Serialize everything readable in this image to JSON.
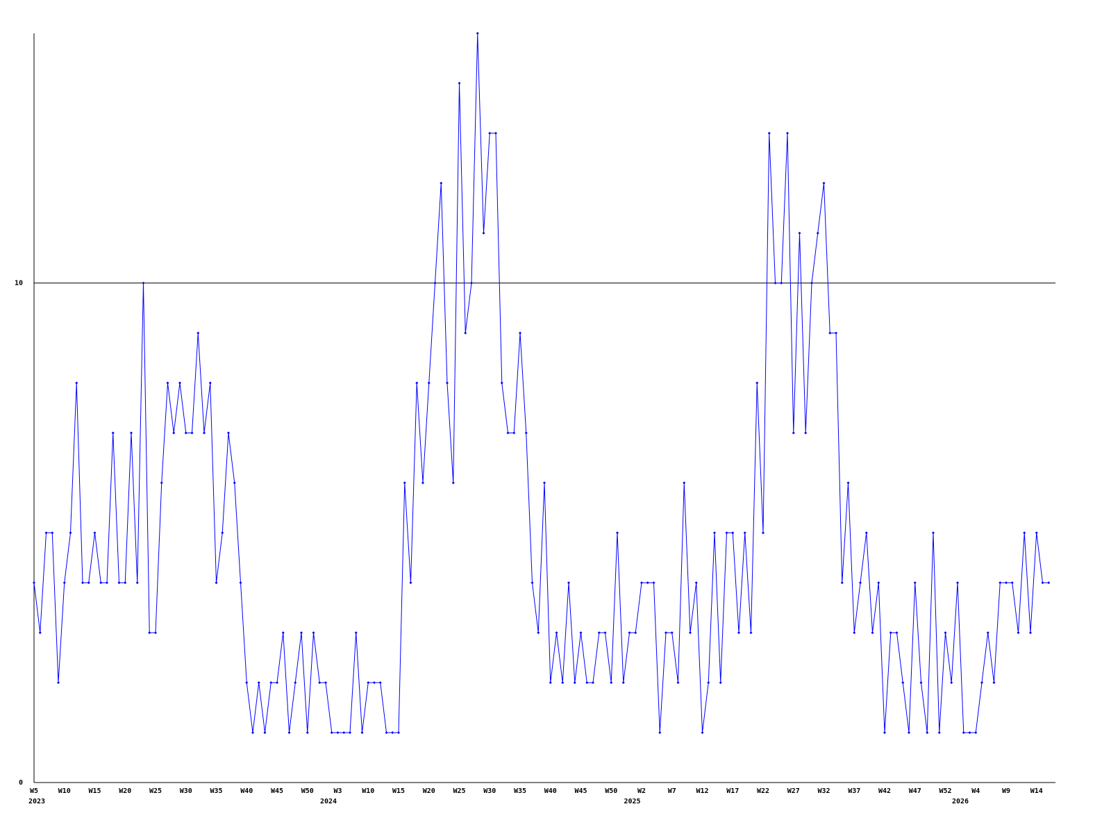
{
  "chart_data": {
    "type": "line",
    "categories": [
      "W5",
      null,
      null,
      null,
      null,
      "W10",
      null,
      null,
      null,
      null,
      "W15",
      null,
      null,
      null,
      null,
      "W20",
      null,
      null,
      null,
      null,
      "W25",
      null,
      null,
      null,
      null,
      "W30",
      null,
      null,
      null,
      null,
      "W35",
      null,
      null,
      null,
      null,
      "W40",
      null,
      null,
      null,
      null,
      "W45",
      null,
      null,
      null,
      null,
      "W50",
      null,
      null,
      null,
      null,
      "W3",
      null,
      null,
      null,
      null,
      "W10",
      null,
      null,
      null,
      null,
      "W15",
      null,
      null,
      null,
      null,
      "W20",
      null,
      null,
      null,
      null,
      "W25",
      null,
      null,
      null,
      null,
      "W30",
      null,
      null,
      null,
      null,
      "W35",
      null,
      null,
      null,
      null,
      "W40",
      null,
      null,
      null,
      null,
      "W45",
      null,
      null,
      null,
      null,
      "W50",
      null,
      null,
      null,
      null,
      "W2",
      null,
      null,
      null,
      null,
      "W7",
      null,
      null,
      null,
      null,
      "W12",
      null,
      null,
      null,
      null,
      "W17",
      null,
      null,
      null,
      null,
      "W22",
      null,
      null,
      null,
      null,
      "W27",
      null,
      null,
      null,
      null,
      "W32",
      null,
      null,
      null,
      null,
      "W37",
      null,
      null,
      null,
      null,
      "W42",
      null,
      null,
      null,
      null,
      "W47",
      null,
      null,
      null,
      null,
      "W52",
      null,
      null,
      null,
      null,
      "W4",
      null,
      null,
      null,
      null,
      "W9",
      null,
      null,
      null,
      null,
      "W14",
      null,
      null
    ],
    "year_labels": [
      "2023",
      null,
      null,
      null,
      null,
      null,
      null,
      null,
      null,
      null,
      null,
      null,
      null,
      null,
      null,
      null,
      null,
      null,
      null,
      null,
      null,
      null,
      null,
      null,
      null,
      null,
      null,
      null,
      null,
      null,
      null,
      null,
      null,
      null,
      null,
      null,
      null,
      null,
      null,
      null,
      null,
      null,
      null,
      null,
      null,
      null,
      null,
      null,
      "2024",
      null,
      null,
      null,
      null,
      null,
      null,
      null,
      null,
      null,
      null,
      null,
      null,
      null,
      null,
      null,
      null,
      null,
      null,
      null,
      null,
      null,
      null,
      null,
      null,
      null,
      null,
      null,
      null,
      null,
      null,
      null,
      null,
      null,
      null,
      null,
      null,
      null,
      null,
      null,
      null,
      null,
      null,
      null,
      null,
      null,
      null,
      null,
      null,
      null,
      "2025",
      null,
      null,
      null,
      null,
      null,
      null,
      null,
      null,
      null,
      null,
      null,
      null,
      null,
      null,
      null,
      null,
      null,
      null,
      null,
      null,
      null,
      null,
      null,
      null,
      null,
      null,
      null,
      null,
      null,
      null,
      null,
      null,
      null,
      null,
      null,
      null,
      null,
      null,
      null,
      null,
      null,
      null,
      null,
      null,
      null,
      null,
      null,
      null,
      null,
      null,
      null,
      null,
      null,
      "2026",
      null,
      null,
      null,
      null,
      null,
      null,
      null,
      null,
      null,
      null,
      null,
      null,
      null,
      null,
      null
    ],
    "series": [
      {
        "color": "#0000ff",
        "values": [
          4,
          3,
          5,
          5,
          2,
          4,
          5,
          8,
          4,
          4,
          5,
          4,
          4,
          7,
          4,
          4,
          7,
          4,
          10,
          3,
          3,
          6,
          8,
          7,
          8,
          7,
          7,
          9,
          7,
          8,
          4,
          5,
          7,
          6,
          4,
          2,
          1,
          2,
          1,
          2,
          2,
          3,
          1,
          2,
          3,
          1,
          3,
          2,
          2,
          1,
          1,
          1,
          1,
          3,
          1,
          2,
          2,
          2,
          1,
          1,
          1,
          6,
          4,
          8,
          6,
          8,
          10,
          12,
          8,
          6,
          14,
          9,
          10,
          15,
          11,
          13,
          13,
          8,
          7,
          7,
          9,
          7,
          4,
          3,
          6,
          2,
          3,
          2,
          4,
          2,
          3,
          2,
          2,
          3,
          3,
          2,
          5,
          2,
          3,
          3,
          4,
          4,
          4,
          1,
          3,
          3,
          2,
          6,
          3,
          4,
          1,
          2,
          5,
          2,
          5,
          5,
          3,
          5,
          3,
          8,
          5,
          13,
          10,
          10,
          13,
          7,
          11,
          7,
          10,
          11,
          12,
          9,
          9,
          4,
          6,
          3,
          4,
          5,
          3,
          4,
          1,
          3,
          3,
          2,
          1,
          4,
          2,
          1,
          5,
          1,
          3,
          2,
          4,
          1,
          1,
          1,
          2,
          3,
          2,
          4,
          4,
          4,
          3,
          5,
          3,
          5,
          4,
          4
        ]
      }
    ],
    "ylim": [
      0,
      15
    ],
    "yticks": [
      0,
      10
    ],
    "grid": true
  }
}
